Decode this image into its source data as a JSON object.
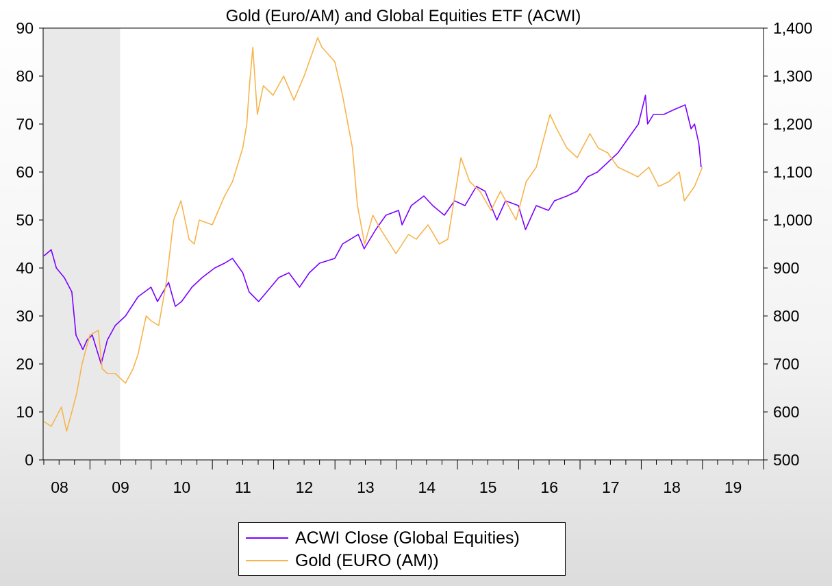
{
  "chart_data": {
    "type": "line",
    "title": "Gold (Euro/AM) and Global Equities ETF (ACWI)",
    "xlabel": "",
    "ylabel": "",
    "x_tick_labels": [
      "08",
      "09",
      "10",
      "11",
      "12",
      "13",
      "14",
      "15",
      "16",
      "17",
      "18",
      "19"
    ],
    "xlim": [
      "2008-03-28",
      "2019-12-31"
    ],
    "recession_band": [
      "2008-03-28",
      "2009-06-30"
    ],
    "left_axis": {
      "ylim": [
        0,
        90
      ],
      "ticks": [
        "0",
        "10",
        "20",
        "30",
        "40",
        "50",
        "60",
        "70",
        "80",
        "90"
      ]
    },
    "right_axis": {
      "ylim": [
        500,
        1400
      ],
      "ticks": [
        "500",
        "600",
        "700",
        "800",
        "900",
        "1,000",
        "1,100",
        "1,200",
        "1,300",
        "1,400"
      ]
    },
    "grid": false,
    "legend_position": "bottom-center",
    "series": [
      {
        "name": "ACWI Close (Global Equities)",
        "axis": "left",
        "color": "#7b00ff",
        "x": [
          "2008-04-01",
          "2008-05-15",
          "2008-06-15",
          "2008-08-01",
          "2008-09-15",
          "2008-10-10",
          "2008-11-20",
          "2008-12-15",
          "2009-01-15",
          "2009-03-09",
          "2009-04-15",
          "2009-06-01",
          "2009-08-01",
          "2009-10-15",
          "2009-12-31",
          "2010-02-08",
          "2010-04-15",
          "2010-05-25",
          "2010-07-01",
          "2010-09-01",
          "2010-11-01",
          "2011-01-15",
          "2011-03-15",
          "2011-05-01",
          "2011-07-01",
          "2011-08-08",
          "2011-10-04",
          "2011-12-15",
          "2012-02-01",
          "2012-04-01",
          "2012-06-04",
          "2012-08-01",
          "2012-10-01",
          "2012-12-31",
          "2013-02-15",
          "2013-05-20",
          "2013-06-24",
          "2013-09-01",
          "2013-11-01",
          "2014-01-15",
          "2014-02-05",
          "2014-04-01",
          "2014-06-15",
          "2014-08-07",
          "2014-10-15",
          "2014-12-15",
          "2015-02-15",
          "2015-04-24",
          "2015-06-15",
          "2015-08-24",
          "2015-10-15",
          "2015-12-31",
          "2016-02-11",
          "2016-04-15",
          "2016-06-27",
          "2016-08-01",
          "2016-10-15",
          "2016-12-15",
          "2017-02-15",
          "2017-04-15",
          "2017-06-15",
          "2017-08-15",
          "2017-10-15",
          "2017-12-15",
          "2018-01-26",
          "2018-02-08",
          "2018-03-15",
          "2018-05-15",
          "2018-07-15",
          "2018-09-20",
          "2018-10-25",
          "2018-11-15",
          "2018-12-10",
          "2018-12-24"
        ],
        "values": [
          42.5,
          43.8,
          40,
          38,
          35,
          26,
          23,
          25,
          26,
          20,
          25,
          28,
          30,
          34,
          36,
          33,
          37,
          32,
          33,
          36,
          38,
          40,
          41,
          42,
          39,
          35,
          33,
          36,
          38,
          39,
          36,
          39,
          41,
          42,
          45,
          47,
          44,
          48,
          51,
          52,
          49,
          53,
          55,
          53,
          51,
          54,
          53,
          57,
          56,
          50,
          54,
          53,
          48,
          53,
          52,
          54,
          55,
          56,
          59,
          60,
          62,
          64,
          67,
          70,
          76,
          70,
          72,
          72,
          73,
          74,
          69,
          70,
          66,
          61
        ]
      },
      {
        "name": "Gold (EURO (AM))",
        "axis": "right",
        "color": "#f7b44c",
        "x": [
          "2008-04-01",
          "2008-05-15",
          "2008-07-15",
          "2008-08-15",
          "2008-09-15",
          "2008-10-15",
          "2008-11-15",
          "2008-12-31",
          "2009-02-20",
          "2009-03-15",
          "2009-04-15",
          "2009-06-01",
          "2009-08-01",
          "2009-09-15",
          "2009-10-15",
          "2009-12-02",
          "2009-12-31",
          "2010-02-15",
          "2010-04-01",
          "2010-05-15",
          "2010-06-28",
          "2010-08-15",
          "2010-09-15",
          "2010-10-15",
          "2010-12-31",
          "2011-03-15",
          "2011-05-01",
          "2011-07-01",
          "2011-07-25",
          "2011-08-10",
          "2011-08-30",
          "2011-09-26",
          "2011-11-01",
          "2011-12-29",
          "2012-03-01",
          "2012-05-01",
          "2012-07-01",
          "2012-09-20",
          "2012-10-15",
          "2012-12-31",
          "2013-02-15",
          "2013-04-15",
          "2013-05-15",
          "2013-06-27",
          "2013-08-15",
          "2013-10-01",
          "2013-12-31",
          "2014-03-15",
          "2014-05-01",
          "2014-07-10",
          "2014-09-15",
          "2014-11-05",
          "2015-01-22",
          "2015-03-15",
          "2015-05-15",
          "2015-07-20",
          "2015-09-15",
          "2015-12-17",
          "2016-02-15",
          "2016-04-15",
          "2016-07-06",
          "2016-08-15",
          "2016-10-15",
          "2016-12-15",
          "2017-03-01",
          "2017-04-20",
          "2017-06-15",
          "2017-08-15",
          "2017-10-15",
          "2017-12-12",
          "2018-02-15",
          "2018-04-15",
          "2018-06-15",
          "2018-08-16",
          "2018-09-15",
          "2018-11-15",
          "2018-12-31"
        ],
        "values": [
          580,
          570,
          610,
          560,
          600,
          640,
          700,
          760,
          770,
          690,
          680,
          680,
          660,
          690,
          720,
          800,
          790,
          780,
          870,
          1000,
          1040,
          960,
          950,
          1000,
          990,
          1050,
          1080,
          1150,
          1200,
          1280,
          1360,
          1220,
          1280,
          1260,
          1300,
          1250,
          1300,
          1380,
          1360,
          1330,
          1260,
          1150,
          1030,
          950,
          1010,
          980,
          930,
          970,
          960,
          990,
          950,
          960,
          1130,
          1080,
          1060,
          1020,
          1060,
          1000,
          1080,
          1110,
          1220,
          1190,
          1150,
          1130,
          1180,
          1150,
          1140,
          1110,
          1100,
          1090,
          1110,
          1070,
          1080,
          1100,
          1040,
          1070,
          1110
        ]
      }
    ]
  }
}
